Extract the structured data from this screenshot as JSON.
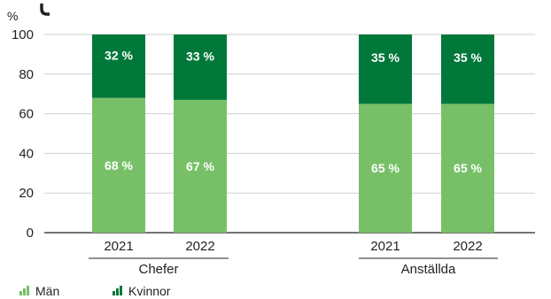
{
  "chart_data": {
    "type": "bar",
    "stacked": true,
    "y_unit_label": "%",
    "ylim": [
      0,
      100
    ],
    "yticks": [
      0,
      20,
      40,
      60,
      80,
      100
    ],
    "groups": [
      {
        "label": "Chefer",
        "categories": [
          "2021",
          "2022"
        ]
      },
      {
        "label": "Anställda",
        "categories": [
          "2021",
          "2022"
        ]
      }
    ],
    "series": [
      {
        "name": "Män",
        "color": "#77c068",
        "values": [
          68,
          67,
          65,
          65
        ],
        "labels": [
          "68 %",
          "67 %",
          "65 %",
          "65 %"
        ]
      },
      {
        "name": "Kvinnor",
        "color": "#00783a",
        "values": [
          32,
          33,
          35,
          35
        ],
        "labels": [
          "32 %",
          "33 %",
          "35 %",
          "35 %"
        ]
      }
    ],
    "grid": true,
    "legend_position": "bottom-left",
    "title": "",
    "xlabel": "",
    "ylabel": ""
  }
}
